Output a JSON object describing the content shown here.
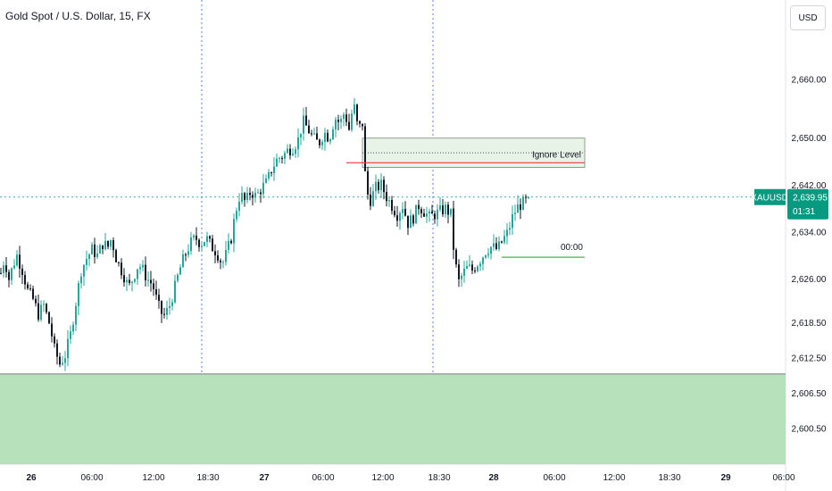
{
  "header": {
    "title": "Gold Spot / U.S. Dollar, 15, FX",
    "currency_button": "USD"
  },
  "colors": {
    "up": "#26a69a",
    "down": "#131722",
    "demand_zone": "#b7e1bb",
    "supply_zone": "#e8f3e8",
    "red_line": "#f23645",
    "price_tag": "#089981",
    "crosshair": "#2962ff"
  },
  "annotations": {
    "ignore_level": "Ignore Level",
    "line_time_label": "00:00",
    "symbol_tag": "XAUUSD",
    "price_tag_value": "2,639.95",
    "price_tag_timer": "01:31"
  },
  "chart_data": {
    "type": "candlestick",
    "symbol": "XAUUSD",
    "timeframe": "15",
    "yaxis": {
      "ticks": [
        2660.0,
        2650.0,
        2642.0,
        2634.0,
        2626.0,
        2618.5,
        2612.5,
        2606.5,
        2600.5
      ],
      "tick_labels": [
        "2,660.00",
        "2,650.00",
        "2,642.00",
        "2,634.00",
        "2,626.00",
        "2,618.50",
        "2,612.50",
        "2,606.50",
        "2,600.50"
      ],
      "range": [
        2594.0,
        2670.0
      ]
    },
    "xaxis": {
      "tick_labels": [
        "26",
        "06:00",
        "12:00",
        "18:30",
        "27",
        "06:00",
        "12:00",
        "18:30",
        "28",
        "06:00",
        "12:00",
        "18:30",
        "29",
        "06:00"
      ],
      "bold": [
        true,
        false,
        false,
        false,
        true,
        false,
        false,
        false,
        true,
        false,
        false,
        false,
        true,
        false
      ]
    },
    "path": [
      [
        0,
        2627.0
      ],
      [
        4,
        2629.5
      ],
      [
        9,
        2626.0
      ],
      [
        14,
        2628.5
      ],
      [
        18,
        2630.0
      ],
      [
        24,
        2627.5
      ],
      [
        30,
        2624.0
      ],
      [
        36,
        2622.5
      ],
      [
        42,
        2620.0
      ],
      [
        48,
        2621.5
      ],
      [
        55,
        2618.0
      ],
      [
        60,
        2614.0
      ],
      [
        66,
        2611.5
      ],
      [
        72,
        2613.0
      ],
      [
        78,
        2616.5
      ],
      [
        84,
        2622.0
      ],
      [
        90,
        2627.5
      ],
      [
        96,
        2629.5
      ],
      [
        102,
        2631.0
      ],
      [
        108,
        2630.0
      ],
      [
        114,
        2632.0
      ],
      [
        120,
        2631.5
      ],
      [
        124,
        2633.0
      ],
      [
        128,
        2630.0
      ],
      [
        132,
        2628.5
      ],
      [
        138,
        2626.5
      ],
      [
        143,
        2624.5
      ],
      [
        149,
        2626.5
      ],
      [
        154,
        2628.5
      ],
      [
        159,
        2627.5
      ],
      [
        164,
        2626.0
      ],
      [
        170,
        2625.0
      ],
      [
        176,
        2621.5
      ],
      [
        182,
        2619.5
      ],
      [
        188,
        2621.0
      ],
      [
        194,
        2624.0
      ],
      [
        200,
        2627.5
      ],
      [
        206,
        2630.0
      ],
      [
        212,
        2632.0
      ],
      [
        218,
        2633.0
      ],
      [
        224,
        2632.0
      ],
      [
        230,
        2633.0
      ],
      [
        236,
        2631.5
      ],
      [
        242,
        2630.5
      ],
      [
        248,
        2628.5
      ],
      [
        253,
        2630.5
      ],
      [
        258,
        2633.0
      ],
      [
        263,
        2637.5
      ],
      [
        268,
        2640.5
      ],
      [
        274,
        2639.0
      ],
      [
        280,
        2641.0
      ],
      [
        286,
        2640.0
      ],
      [
        292,
        2641.5
      ],
      [
        298,
        2642.5
      ],
      [
        304,
        2645.0
      ],
      [
        310,
        2646.5
      ],
      [
        316,
        2647.0
      ],
      [
        322,
        2648.0
      ],
      [
        328,
        2648.5
      ],
      [
        334,
        2650.0
      ],
      [
        338,
        2653.0
      ],
      [
        344,
        2651.5
      ],
      [
        350,
        2650.0
      ],
      [
        356,
        2649.0
      ],
      [
        362,
        2651.0
      ],
      [
        368,
        2650.0
      ],
      [
        374,
        2653.5
      ],
      [
        380,
        2652.5
      ],
      [
        385,
        2654.5
      ],
      [
        390,
        2651.5
      ],
      [
        395,
        2656.0
      ],
      [
        400,
        2651.5
      ],
      [
        405,
        2652.5
      ],
      [
        409,
        2641.0
      ],
      [
        414,
        2639.5
      ],
      [
        420,
        2641.5
      ],
      [
        426,
        2642.0
      ],
      [
        432,
        2640.0
      ],
      [
        438,
        2638.5
      ],
      [
        444,
        2637.0
      ],
      [
        450,
        2638.5
      ],
      [
        456,
        2635.5
      ],
      [
        462,
        2636.5
      ],
      [
        468,
        2638.5
      ],
      [
        474,
        2637.5
      ],
      [
        480,
        2636.5
      ],
      [
        486,
        2637.0
      ],
      [
        492,
        2637.5
      ],
      [
        498,
        2638.0
      ],
      [
        504,
        2637.0
      ],
      [
        508,
        2629.5
      ],
      [
        513,
        2625.5
      ],
      [
        518,
        2627.0
      ],
      [
        523,
        2628.0
      ],
      [
        528,
        2627.5
      ],
      [
        533,
        2628.5
      ],
      [
        538,
        2629.5
      ],
      [
        544,
        2631.0
      ],
      [
        550,
        2631.5
      ],
      [
        556,
        2631.0
      ],
      [
        562,
        2632.5
      ],
      [
        568,
        2634.0
      ],
      [
        574,
        2637.0
      ],
      [
        580,
        2638.5
      ],
      [
        586,
        2639.0
      ],
      [
        592,
        2639.95
      ]
    ],
    "zones": [
      {
        "kind": "supply",
        "price_top": 2650.0,
        "price_bottom": 2645.0,
        "label_key": "ignore_level"
      },
      {
        "kind": "demand",
        "price_top": 2609.8,
        "price_bottom": 2592.0
      }
    ],
    "lines": [
      {
        "kind": "red",
        "price": 2645.8
      },
      {
        "kind": "dotted",
        "price": 2647.5
      },
      {
        "kind": "green",
        "price": 2629.7
      }
    ],
    "last_price": 2639.95
  }
}
